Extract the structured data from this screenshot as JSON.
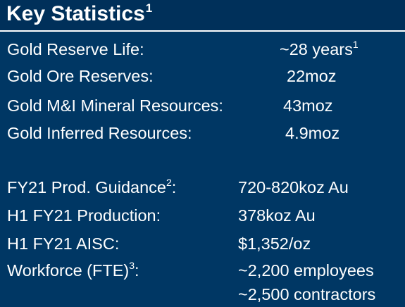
{
  "title": {
    "text": "Key Statistics",
    "superscript": "1"
  },
  "reserves": {
    "gold_reserve_life_label": "Gold Reserve Life:",
    "gold_reserve_life_value": "~28 years",
    "gold_reserve_life_note": "1",
    "gold_ore_reserves_label": "Gold Ore Reserves:",
    "gold_ore_reserves_value": "22moz",
    "gold_mi_resources_label": "Gold M&I Mineral Resources:",
    "gold_mi_resources_value": "43moz",
    "gold_inferred_label": "Gold Inferred Resources:",
    "gold_inferred_value": "4.9moz"
  },
  "operations": {
    "prod_guidance_label": "FY21 Prod. Guidance",
    "prod_guidance_note": "2",
    "prod_guidance_value": "720-820koz Au",
    "h1_production_label": "H1 FY21 Production:",
    "h1_production_value": "378koz Au",
    "h1_aisc_label": "H1 FY21 AISC:",
    "h1_aisc_value": "$1,352/oz",
    "workforce_label": "Workforce (FTE)",
    "workforce_note": "3",
    "workforce_employees": "~2,200 employees",
    "workforce_contractors": "~2,500 contractors"
  },
  "colors": {
    "background": "#003764",
    "title_band": "#00305a",
    "text": "#ffffff"
  }
}
